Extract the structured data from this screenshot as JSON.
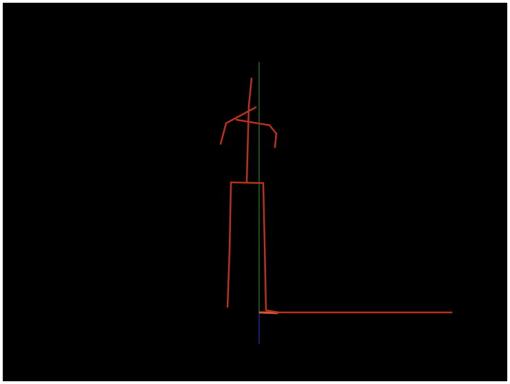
{
  "viewport": {
    "background_color": "#000000",
    "page_border_color": "#ffffff"
  },
  "colors": {
    "skeleton": "#b8321e",
    "skeleton_light": "#d8572f",
    "y_axis": "#1f6b22",
    "z_axis": "#1c2b8f",
    "floor": "#b8321e"
  },
  "elements": {
    "skeleton": "stick-figure-skeleton",
    "axes": "axis-lines",
    "floor": "floor-line"
  }
}
